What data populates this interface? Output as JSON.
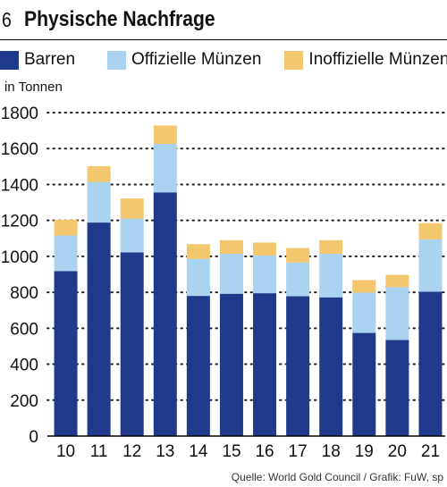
{
  "header": {
    "number": "6",
    "title": "Physische Nachfrage"
  },
  "unit_label": "in Tonnen",
  "source": "Quelle: World Gold Council / Grafik: FuW, sp",
  "colors": {
    "barren": "#1f3a8a",
    "offizielle": "#a9d3f0",
    "inoffizielle": "#f2c76e",
    "grid": "#222222"
  },
  "chart_data": {
    "type": "bar",
    "stacked": true,
    "categories": [
      "10",
      "11",
      "12",
      "13",
      "14",
      "15",
      "16",
      "17",
      "18",
      "19",
      "20",
      "21"
    ],
    "series": [
      {
        "name": "Barren",
        "values": [
          918,
          1188,
          1022,
          1356,
          780,
          792,
          795,
          778,
          772,
          574,
          535,
          803
        ]
      },
      {
        "name": "Offizielle Münzen",
        "values": [
          198,
          226,
          188,
          270,
          206,
          222,
          210,
          188,
          242,
          224,
          294,
          292
        ]
      },
      {
        "name": "Inoffizielle Münzen",
        "values": [
          88,
          88,
          112,
          102,
          82,
          76,
          72,
          80,
          76,
          70,
          68,
          90
        ]
      }
    ],
    "xlabel": "",
    "ylabel": "in Tonnen",
    "ylim": [
      0,
      1800
    ],
    "yticks": [
      0,
      200,
      400,
      600,
      800,
      1000,
      1200,
      1400,
      1600,
      1800
    ],
    "grid": "dotted horizontal",
    "legend": "top"
  }
}
